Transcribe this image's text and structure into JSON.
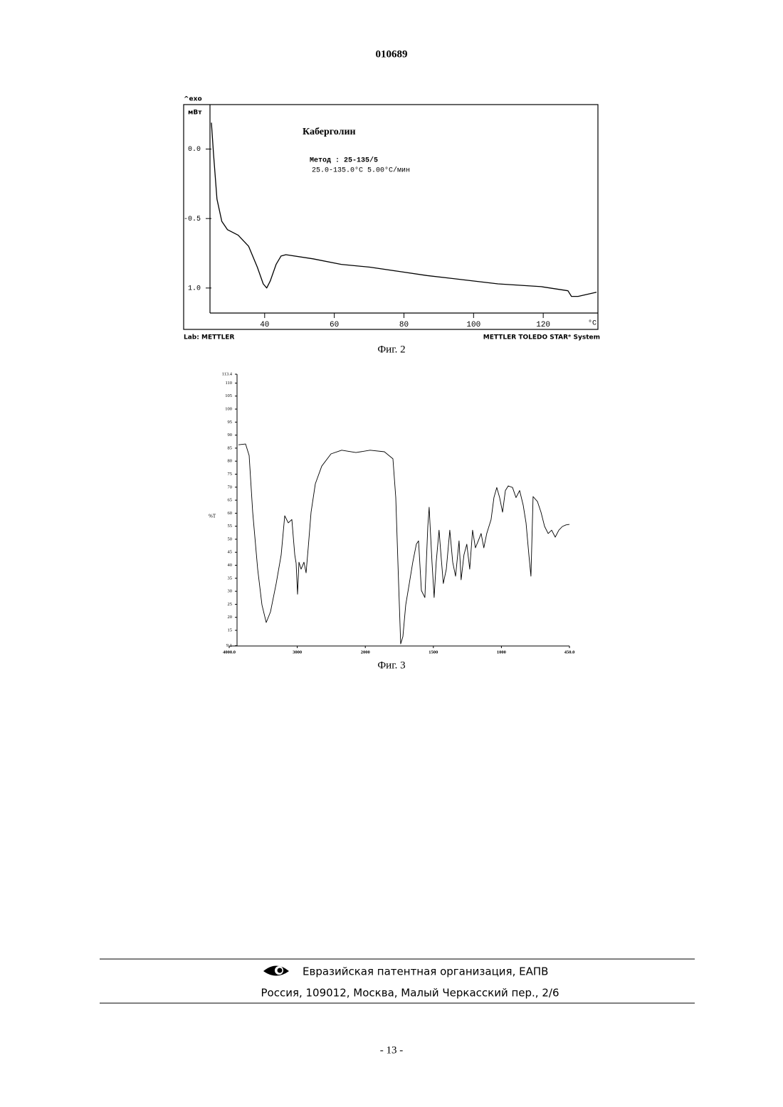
{
  "header": {
    "number": "010689"
  },
  "chart_data": [
    {
      "type": "line",
      "title": "Каберголин",
      "method": "Метод : 25-135/5",
      "conditions": "25.0-135.0°C 5.00°C/мин",
      "y_label_top": "^exo",
      "y_label": "мВт",
      "x_label": "°C",
      "footer_left": "Lab: METTLER",
      "footer_right": "METTLER TOLEDO STARᵉ System",
      "x": [
        24.7,
        25.3,
        26.3,
        27.7,
        29.3,
        32.4,
        35.4,
        37.9,
        39.6,
        40.6,
        41.6,
        43.3,
        44.7,
        46.1,
        53.9,
        62.0,
        70.2,
        78.4,
        86.6,
        96.8,
        107.0,
        119.4,
        127.1,
        128.1,
        130.0,
        135.3
      ],
      "values": [
        0.19,
        -0.03,
        -0.36,
        -0.52,
        -0.58,
        -0.62,
        -0.7,
        -0.85,
        -0.97,
        -1.0,
        -0.95,
        -0.83,
        -0.77,
        -0.76,
        -0.79,
        -0.83,
        -0.85,
        -0.88,
        -0.91,
        -0.94,
        -0.97,
        -0.99,
        -1.02,
        -1.06,
        -1.06,
        -1.03
      ],
      "color": "#000000",
      "xlim": [
        24.3,
        135.3
      ],
      "ylim": [
        -1.18,
        0.32
      ],
      "xticks": [
        40,
        60,
        80,
        100,
        120
      ],
      "yticks": [
        {
          "value": 0,
          "label": "0.0"
        },
        -0.5,
        {
          "value": -1,
          "label": "1.0"
        }
      ]
    },
    {
      "type": "line",
      "y_label": "%T",
      "x": [
        3864,
        3759,
        3707,
        3655,
        3582,
        3519,
        3456,
        3393,
        3310,
        3236,
        3184,
        3132,
        3079,
        3037,
        3017,
        2996,
        2975,
        2944,
        2902,
        2870,
        2839,
        2797,
        2734,
        2640,
        2504,
        2347,
        2138,
        1965,
        1860,
        1797,
        1776,
        1755,
        1740,
        1724,
        1703,
        1677,
        1651,
        1625,
        1609,
        1588,
        1562,
        1541,
        1531,
        1510,
        1494,
        1479,
        1458,
        1442,
        1427,
        1405,
        1379,
        1358,
        1337,
        1311,
        1296,
        1275,
        1254,
        1233,
        1212,
        1191,
        1170,
        1149,
        1129,
        1108,
        1076,
        1055,
        1034,
        1013,
        991,
        968,
        945,
        910,
        882,
        853,
        824,
        801,
        778,
        761,
        744,
        709,
        680,
        651,
        622,
        594,
        565,
        536,
        507,
        478,
        450
      ],
      "values": [
        86.3,
        86.6,
        82.2,
        60.4,
        38.5,
        24.8,
        18.0,
        22.1,
        33.0,
        44.0,
        59.0,
        56.3,
        57.6,
        44.0,
        40.8,
        28.9,
        41.2,
        38.5,
        41.2,
        37.1,
        46.7,
        60.4,
        71.3,
        78.1,
        82.8,
        84.2,
        83.3,
        84.2,
        83.6,
        80.9,
        66.0,
        33.0,
        9.8,
        12.6,
        24.8,
        33.0,
        41.2,
        48.1,
        49.4,
        30.3,
        27.6,
        54.9,
        62.3,
        41.2,
        27.6,
        41.2,
        53.5,
        42.6,
        33.0,
        38.5,
        53.5,
        41.2,
        35.8,
        49.4,
        34.4,
        44.0,
        48.1,
        38.5,
        53.5,
        46.7,
        49.4,
        52.2,
        46.7,
        52.2,
        57.6,
        66.0,
        69.9,
        66.0,
        60.4,
        68.7,
        70.5,
        69.9,
        66.0,
        68.7,
        63.1,
        56.3,
        44.0,
        35.8,
        66.4,
        64.5,
        60.4,
        54.9,
        52.2,
        53.5,
        50.8,
        53.5,
        54.9,
        55.5,
        55.7
      ],
      "color": "#000000",
      "xlim": [
        4000,
        450
      ],
      "ylim": [
        9.1,
        113.4
      ],
      "xticks": [
        {
          "value": 4000,
          "label": "4000.0"
        },
        3000,
        2000,
        1500,
        1000,
        {
          "value": 450,
          "label": "450.0"
        }
      ],
      "yticks": [
        9.1,
        15,
        20,
        25,
        30,
        35,
        40,
        45,
        50,
        55,
        60,
        65,
        70,
        75,
        80,
        85,
        90,
        95,
        100,
        105,
        110,
        113.4
      ]
    }
  ],
  "captions": [
    "Фиг. 2",
    "Фиг. 3"
  ],
  "footer": {
    "organization": "Евразийская патентная организация, ЕАПВ",
    "address": "Россия, 109012, Москва, Малый Черкасский пер., 2/6"
  },
  "page_number": "- 13 -"
}
